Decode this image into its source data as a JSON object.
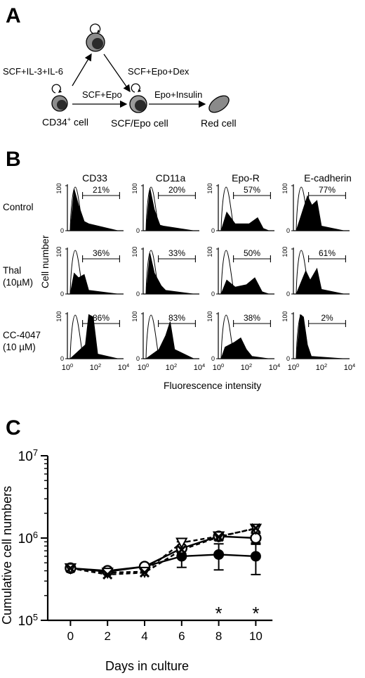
{
  "panel_a": {
    "letter": "A",
    "arrows": {
      "left_diag": "SCF+IL-3+IL-6",
      "right_diag": "SCF+Epo+Dex",
      "middle": "SCF+Epo",
      "right": "Epo+Insulin"
    },
    "cells": {
      "cd34_base": "CD34",
      "cd34_sup": "+",
      "cd34_suffix": " cell",
      "scf_epo": "SCF/Epo cell",
      "red": "Red cell"
    }
  },
  "panel_b": {
    "letter": "B",
    "columns": [
      "CD33",
      "CD11a",
      "Epo-R",
      "E-cadherin"
    ],
    "rows": [
      {
        "line1": "Control",
        "line2": ""
      },
      {
        "line1": "Thal",
        "line2": "(10µM)"
      },
      {
        "line1": "CC-4047",
        "line2": "(10 µM)"
      }
    ],
    "percentages": [
      [
        "21%",
        "20%",
        "57%",
        "77%"
      ],
      [
        "36%",
        "33%",
        "50%",
        "61%"
      ],
      [
        "86%",
        "83%",
        "38%",
        "2%"
      ]
    ],
    "y_axis_label": "Cell number",
    "y_tick_0": "0",
    "y_tick_100": "100",
    "x_axis_label": "Fluorescence intensity",
    "x_ticks": [
      {
        "base": "10",
        "exp": "0"
      },
      {
        "base": "10",
        "exp": "2"
      },
      {
        "base": "10",
        "exp": "4"
      }
    ]
  },
  "panel_c": {
    "letter": "C",
    "y_axis_label": "Cumulative cell numbers",
    "x_axis_label": "Days in culture",
    "y_ticks": [
      {
        "base": "10",
        "exp": "5",
        "value": 100000
      },
      {
        "base": "10",
        "exp": "6",
        "value": 1000000
      },
      {
        "base": "10",
        "exp": "7",
        "value": 10000000
      }
    ],
    "x_ticks": [
      "0",
      "2",
      "4",
      "6",
      "8",
      "10"
    ],
    "significance_marker": "*"
  },
  "chart_data": {
    "type": "line",
    "x": [
      0,
      2,
      4,
      6,
      8,
      10
    ],
    "xlabel": "Days in culture",
    "ylabel": "Cumulative cell numbers",
    "yscale": "log",
    "ylim": [
      100000,
      10000000
    ],
    "xlim": [
      -1,
      11
    ],
    "grid": false,
    "series": [
      {
        "marker": "filled-circle",
        "line": "solid",
        "values": [
          430000,
          390000,
          450000,
          600000,
          630000,
          600000
        ],
        "err_low": [
          405000,
          370000,
          425000,
          440000,
          410000,
          360000
        ],
        "err_high": [
          455000,
          410000,
          475000,
          760000,
          850000,
          840000
        ]
      },
      {
        "marker": "open-circle",
        "line": "solid",
        "values": [
          430000,
          400000,
          450000,
          750000,
          1050000,
          1000000
        ],
        "err_low": [
          410000,
          380000,
          430000,
          610000,
          950000,
          870000
        ],
        "err_high": [
          450000,
          420000,
          470000,
          900000,
          1100000,
          1150000
        ]
      },
      {
        "marker": "open-triangle",
        "line": "dashed",
        "values": [
          430000,
          380000,
          390000,
          880000,
          1050000,
          1300000
        ]
      },
      {
        "marker": "cross",
        "line": "dashed",
        "values": [
          430000,
          360000,
          380000,
          720000,
          1030000,
          1320000
        ]
      }
    ],
    "significance": [
      {
        "x": 8,
        "label": "*"
      },
      {
        "x": 10,
        "label": "*"
      }
    ]
  },
  "colors": {
    "ink": "#000000",
    "cell_fill": "#7a7a7a",
    "cell_nucleus": "#2b2b2b",
    "red_cell": "#8a8a8a"
  }
}
